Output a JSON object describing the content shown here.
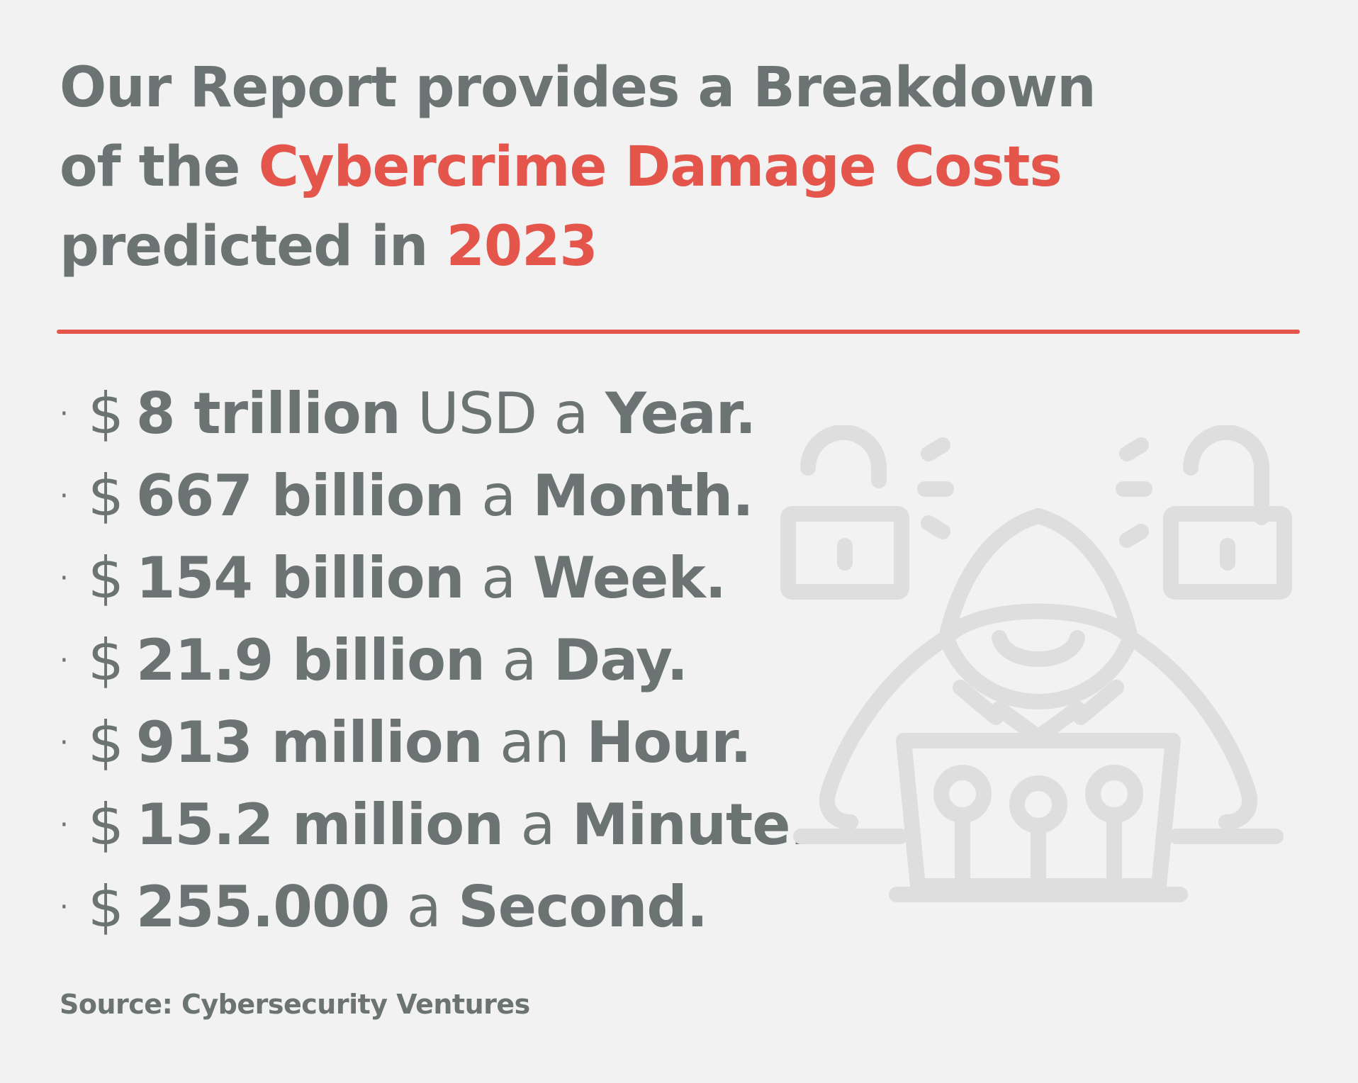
{
  "heading": {
    "line1": "Our Report provides a Breakdown",
    "line2_prefix": "of the ",
    "line2_highlight": "Cybercrime Damage Costs",
    "line3_prefix": "predicted in ",
    "line3_highlight": "2023"
  },
  "colors": {
    "accent": "#e4554c",
    "text": "#6b7373",
    "background": "#f2f2f2",
    "illustration": "#dedede"
  },
  "stats": [
    {
      "bullet": "·",
      "currency": "$",
      "amount": "8 trillion",
      "connector": "USD a",
      "period": "Year."
    },
    {
      "bullet": "·",
      "currency": "$",
      "amount": "667 billion",
      "connector": "a",
      "period": "Month."
    },
    {
      "bullet": "·",
      "currency": "$",
      "amount": "154 billion",
      "connector": "a",
      "period": "Week."
    },
    {
      "bullet": "·",
      "currency": "$",
      "amount": "21.9 billion",
      "connector": "a",
      "period": "Day."
    },
    {
      "bullet": "·",
      "currency": "$",
      "amount": "913 million",
      "connector": "an",
      "period": "Hour."
    },
    {
      "bullet": "·",
      "currency": "$",
      "amount": "15.2 million",
      "connector": "a",
      "period": "Minute."
    },
    {
      "bullet": "·",
      "currency": "$",
      "amount": "255.000",
      "connector": "a",
      "period": "Second."
    }
  ],
  "source": "Source: Cybersecurity Ventures",
  "illustration": {
    "icons": [
      "open-padlock-icon",
      "hacker-hood-icon",
      "laptop-circuit-icon",
      "open-padlock-icon"
    ]
  }
}
